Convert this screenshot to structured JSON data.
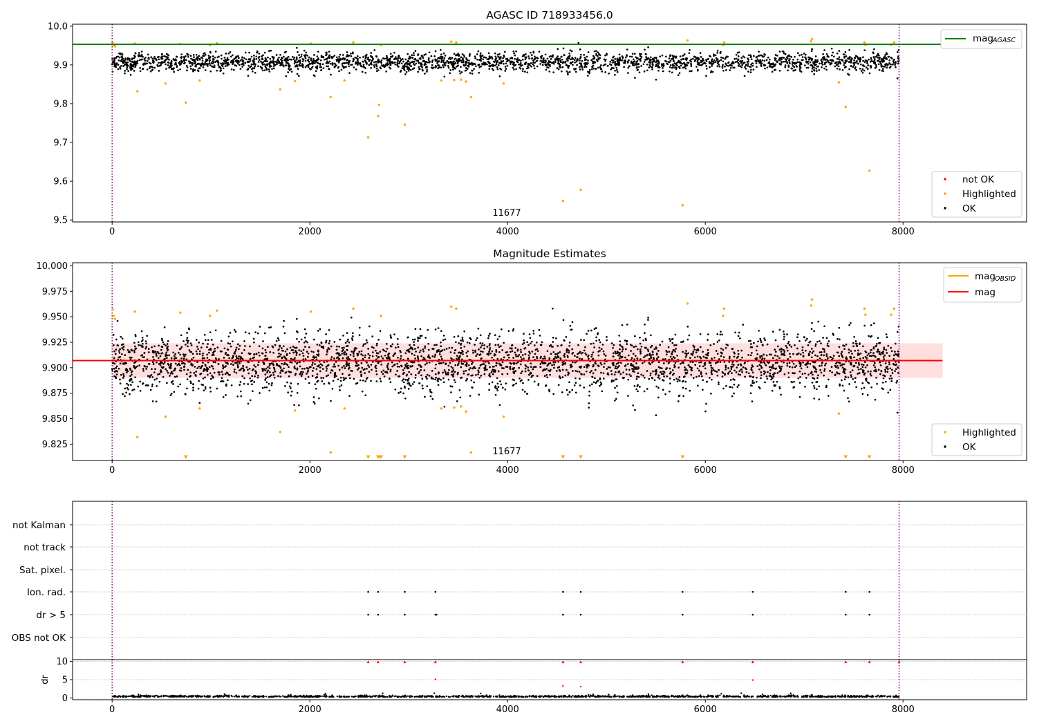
{
  "colors": {
    "ok": "#000000",
    "highlighted": "#ffa500",
    "not_ok": "#ff0000",
    "agasc_line": "#008000",
    "obsid_line": "#ffa500",
    "mag_line": "#ff0000",
    "band_fill": "#ffb6b6",
    "vline": "#800080",
    "grid": "#b0b0b0"
  },
  "chart_data": [
    {
      "type": "scatter",
      "title": "AGASC ID 718933456.0",
      "xlim": [
        -400,
        9250
      ],
      "ylim": [
        9.495,
        10.005
      ],
      "x_ticks": [
        "0",
        "2000",
        "4000",
        "6000",
        "8000"
      ],
      "x_tick_values": [
        0,
        2000,
        4000,
        6000,
        8000
      ],
      "y_ticks": [
        "9.5",
        "9.6",
        "9.7",
        "9.8",
        "9.9",
        "10.0"
      ],
      "y_tick_values": [
        9.5,
        9.6,
        9.7,
        9.8,
        9.9,
        10.0
      ],
      "annotation": {
        "text": "11677",
        "x": 3970,
        "y": 9.52
      },
      "vlines": [
        0,
        7960
      ],
      "hline": {
        "y": 9.953,
        "x_start": -400,
        "x_end": 8400
      },
      "ok_band": {
        "center": 9.907,
        "spread": 0.012,
        "x_start": 0,
        "x_end": 7960
      },
      "highlighted_points": [
        [
          5,
          9.957
        ],
        [
          15,
          9.951
        ],
        [
          30,
          9.948
        ],
        [
          230,
          9.955
        ],
        [
          255,
          9.832
        ],
        [
          540,
          9.852
        ],
        [
          690,
          9.954
        ],
        [
          745,
          9.803
        ],
        [
          885,
          9.86
        ],
        [
          990,
          9.951
        ],
        [
          1060,
          9.956
        ],
        [
          1700,
          9.837
        ],
        [
          1850,
          9.858
        ],
        [
          2010,
          9.955
        ],
        [
          2210,
          9.817
        ],
        [
          2350,
          9.86
        ],
        [
          2440,
          9.958
        ],
        [
          2590,
          9.713
        ],
        [
          2690,
          9.768
        ],
        [
          2700,
          9.797
        ],
        [
          2720,
          9.951
        ],
        [
          2960,
          9.746
        ],
        [
          3330,
          9.86
        ],
        [
          3430,
          9.96
        ],
        [
          3460,
          9.861
        ],
        [
          3480,
          9.958
        ],
        [
          3530,
          9.862
        ],
        [
          3580,
          9.857
        ],
        [
          3630,
          9.817
        ],
        [
          3960,
          9.852
        ],
        [
          4560,
          9.549
        ],
        [
          4740,
          9.578
        ],
        [
          5770,
          9.538
        ],
        [
          5820,
          9.963
        ],
        [
          6190,
          9.958
        ],
        [
          6180,
          9.951
        ],
        [
          7070,
          9.961
        ],
        [
          7080,
          9.967
        ],
        [
          7350,
          9.855
        ],
        [
          7420,
          9.792
        ],
        [
          7610,
          9.958
        ],
        [
          7620,
          9.952
        ],
        [
          7660,
          9.627
        ],
        [
          7880,
          9.952
        ],
        [
          7910,
          9.958
        ]
      ],
      "not_ok_points": [],
      "legend_top": [
        {
          "label": "mag",
          "subscript": "AGASC"
        }
      ],
      "legend_bottom": [
        {
          "label": "not OK"
        },
        {
          "label": "Highlighted"
        },
        {
          "label": "OK"
        }
      ]
    },
    {
      "type": "scatter",
      "title": "Magnitude Estimates",
      "xlim": [
        -400,
        9250
      ],
      "ylim": [
        9.809,
        10.003
      ],
      "x_ticks": [
        "0",
        "2000",
        "4000",
        "6000",
        "8000"
      ],
      "x_tick_values": [
        0,
        2000,
        4000,
        6000,
        8000
      ],
      "y_ticks": [
        "9.825",
        "9.850",
        "9.875",
        "9.900",
        "9.925",
        "9.950",
        "9.975",
        "10.000"
      ],
      "y_tick_values": [
        9.825,
        9.85,
        9.875,
        9.9,
        9.925,
        9.95,
        9.975,
        10.0
      ],
      "annotation": {
        "text": "11677",
        "x": 3970,
        "y": 9.816
      },
      "vlines": [
        0,
        7960
      ],
      "mag_line": {
        "y": 9.907,
        "x_start": -400,
        "x_end": 8400
      },
      "mag_band": {
        "low": 9.89,
        "high": 9.924,
        "x_start": 0,
        "x_end": 8400
      },
      "ok_band": {
        "center": 9.905,
        "spread": 0.014,
        "x_start": 0,
        "x_end": 7960
      },
      "highlighted_points": [
        [
          5,
          9.957
        ],
        [
          15,
          9.951
        ],
        [
          30,
          9.948
        ],
        [
          230,
          9.955
        ],
        [
          255,
          9.832
        ],
        [
          540,
          9.852
        ],
        [
          690,
          9.954
        ],
        [
          885,
          9.86
        ],
        [
          990,
          9.951
        ],
        [
          1060,
          9.956
        ],
        [
          1700,
          9.837
        ],
        [
          1850,
          9.858
        ],
        [
          2010,
          9.955
        ],
        [
          2210,
          9.817
        ],
        [
          2350,
          9.86
        ],
        [
          2440,
          9.958
        ],
        [
          2720,
          9.951
        ],
        [
          3330,
          9.86
        ],
        [
          3430,
          9.96
        ],
        [
          3460,
          9.861
        ],
        [
          3480,
          9.958
        ],
        [
          3530,
          9.862
        ],
        [
          3580,
          9.857
        ],
        [
          3630,
          9.817
        ],
        [
          3960,
          9.852
        ],
        [
          5820,
          9.963
        ],
        [
          6190,
          9.958
        ],
        [
          6180,
          9.951
        ],
        [
          7070,
          9.961
        ],
        [
          7080,
          9.967
        ],
        [
          7350,
          9.855
        ],
        [
          7610,
          9.958
        ],
        [
          7620,
          9.952
        ],
        [
          7880,
          9.952
        ],
        [
          7910,
          9.958
        ]
      ],
      "clipped_markers_x": [
        745,
        2590,
        2690,
        2700,
        2720,
        2960,
        4560,
        4740,
        5770,
        7420,
        7660
      ],
      "legend_top": [
        {
          "label": "mag",
          "subscript": "OBSID"
        },
        {
          "label": "mag"
        }
      ],
      "legend_bottom": [
        {
          "label": "Highlighted"
        },
        {
          "label": "OK"
        }
      ]
    },
    {
      "type": "scatter",
      "xlim": [
        -400,
        9250
      ],
      "flag_rows": [
        "not Kalman",
        "not track",
        "Sat. pixel.",
        "Ion. rad.",
        "dr > 5",
        "OBS not OK"
      ],
      "flags": {
        "Ion. rad.": [
          2590,
          2690,
          2960,
          3270,
          4560,
          4740,
          5770,
          6480,
          7420,
          7660
        ],
        "dr > 5": [
          2590,
          2690,
          2960,
          3270,
          3280,
          4560,
          4740,
          5770,
          6480,
          7420,
          7660
        ]
      },
      "vlines": [
        0,
        7960
      ],
      "dr_panel": {
        "ylabel": "dr",
        "ylim": [
          -0.5,
          10.5
        ],
        "y_ticks": [
          "0",
          "5",
          "10"
        ],
        "y_tick_values": [
          0,
          5,
          10
        ],
        "x_ticks": [
          "0",
          "2000",
          "4000",
          "6000",
          "8000"
        ],
        "x_tick_values": [
          0,
          2000,
          4000,
          6000,
          8000
        ],
        "not_ok_points": [
          [
            2590,
            9.9
          ],
          [
            2690,
            9.9
          ],
          [
            2960,
            9.9
          ],
          [
            3270,
            9.9
          ],
          [
            4560,
            9.9
          ],
          [
            4740,
            9.9
          ],
          [
            5770,
            9.9
          ],
          [
            6480,
            9.9
          ],
          [
            7420,
            9.9
          ],
          [
            7660,
            9.9
          ],
          [
            7960,
            9.9
          ],
          [
            3270,
            5.1
          ],
          [
            6480,
            4.9
          ],
          [
            4560,
            3.3
          ],
          [
            4740,
            3.1
          ]
        ],
        "baseline_mean": 0.25
      }
    }
  ]
}
